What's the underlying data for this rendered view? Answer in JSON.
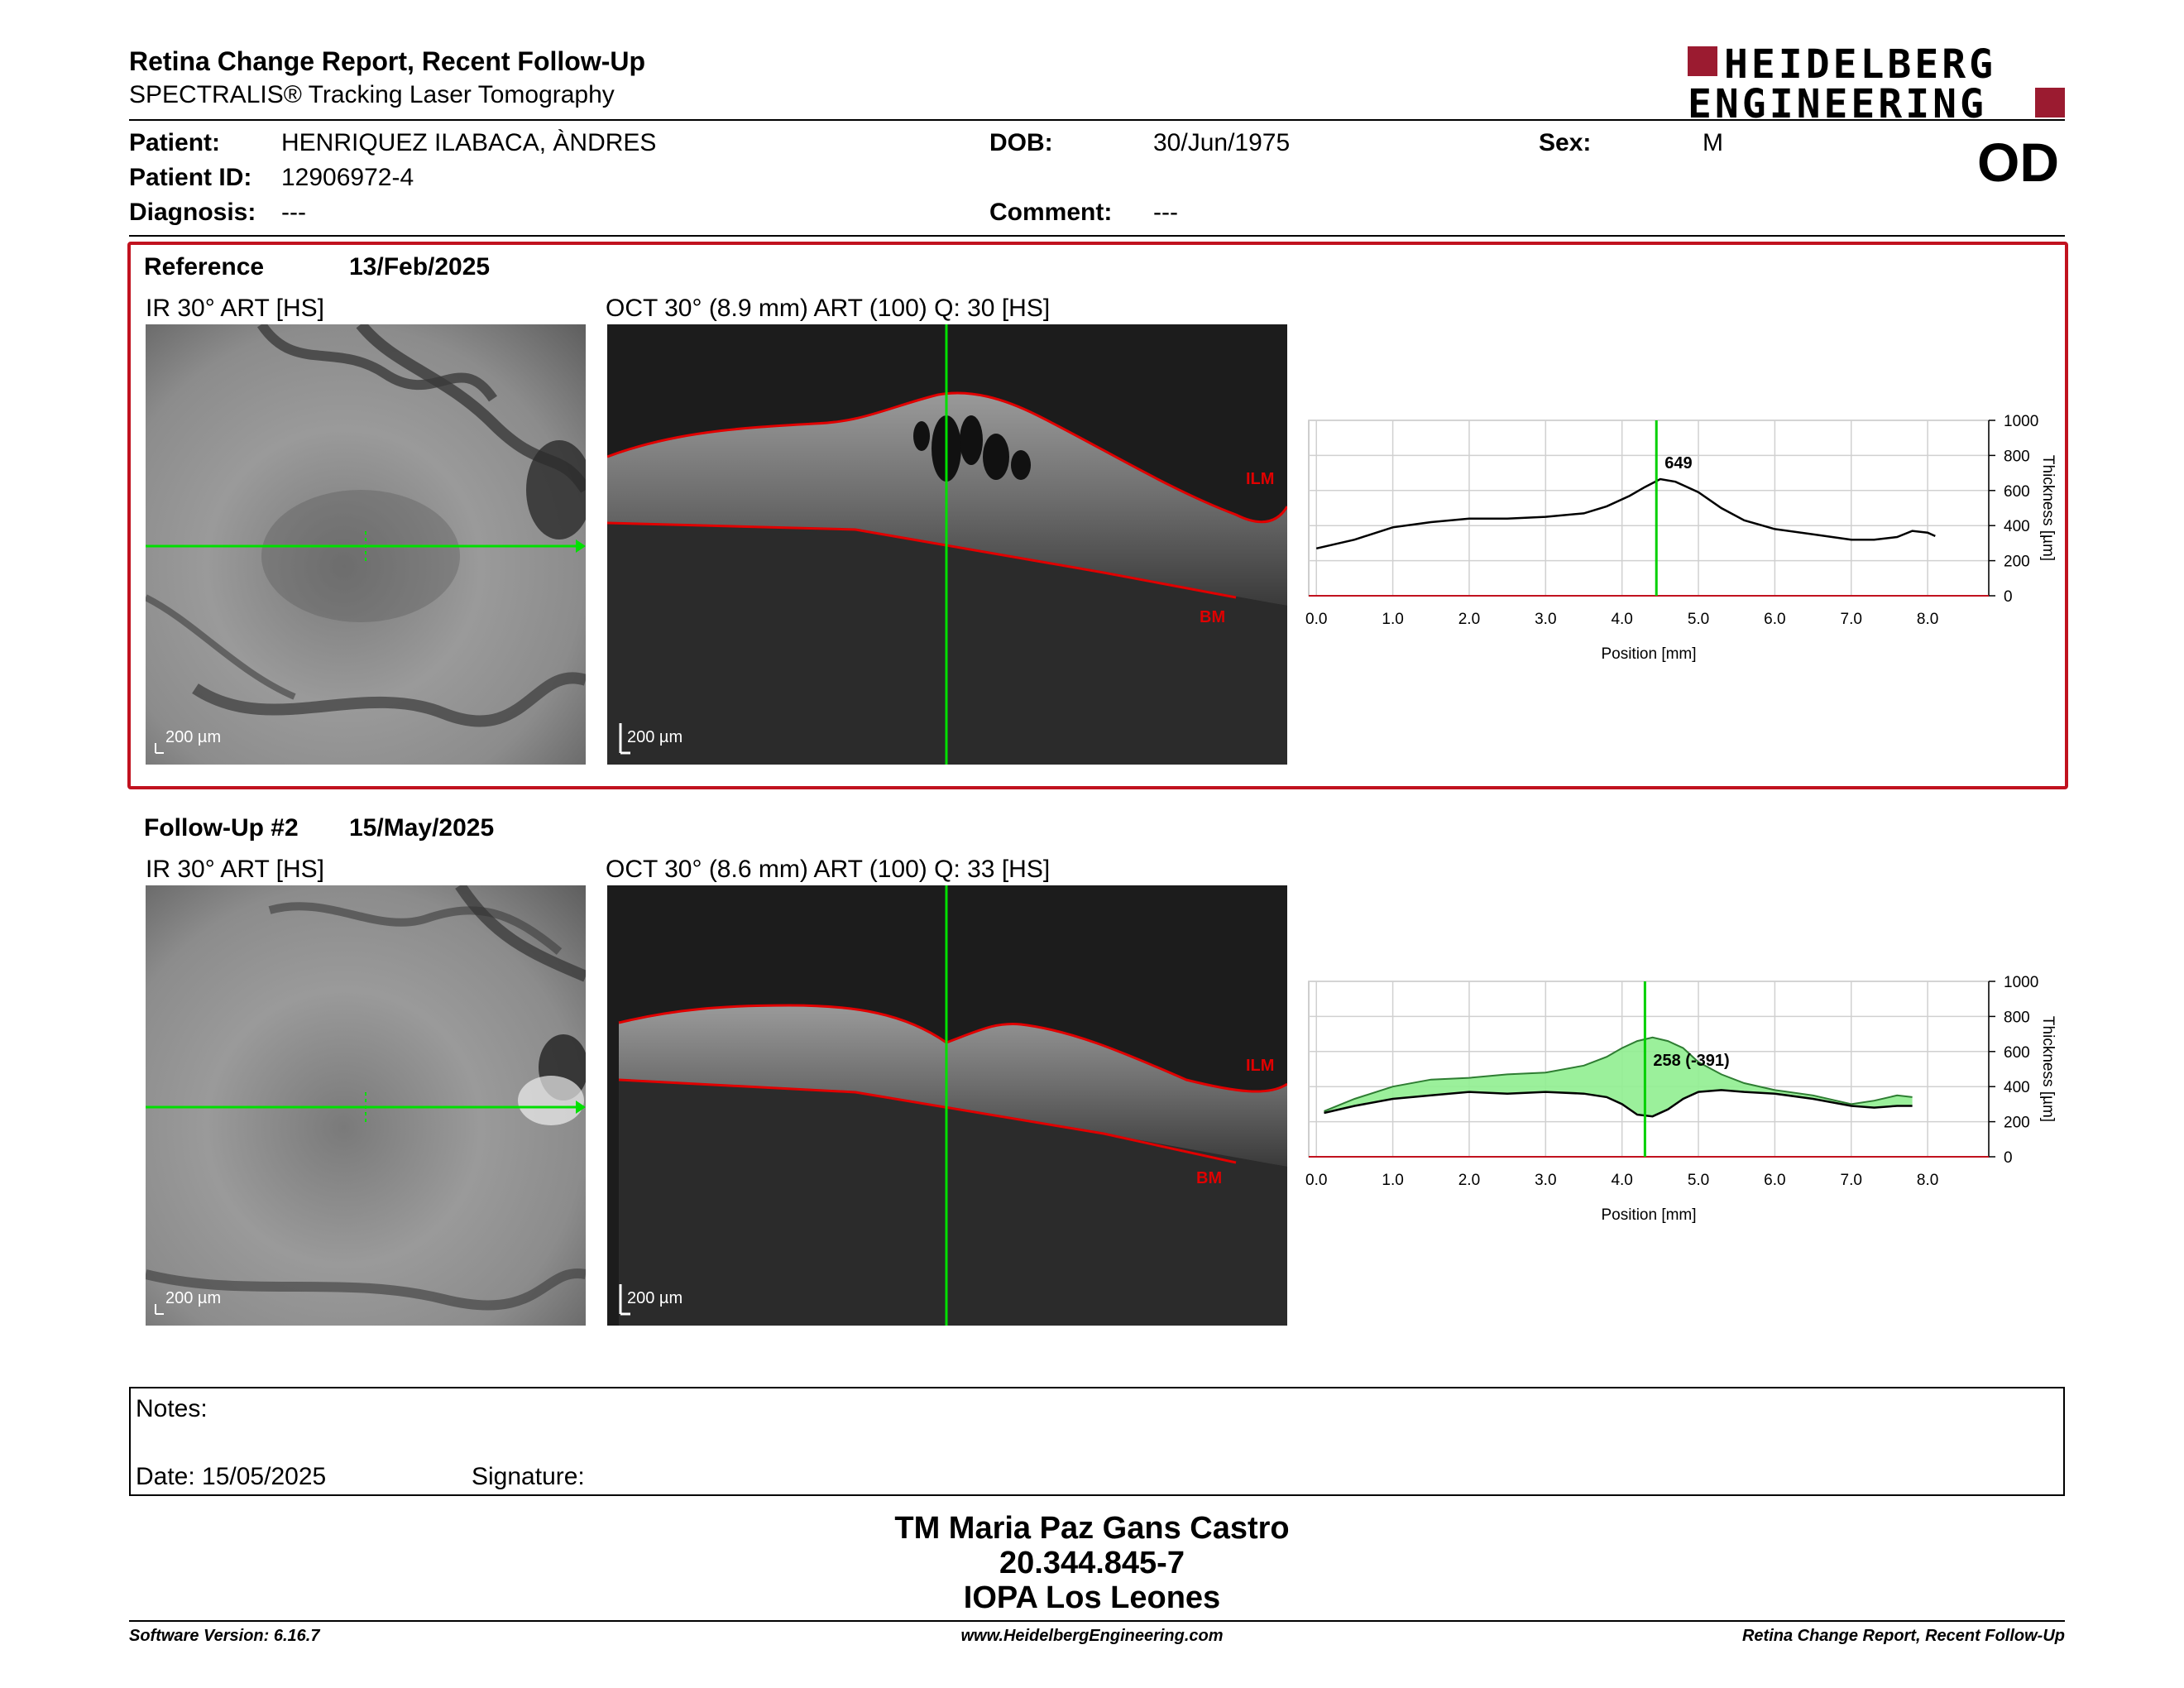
{
  "report": {
    "title": "Retina Change Report, Recent Follow-Up",
    "subtitle": "SPECTRALIS® Tracking Laser Tomography"
  },
  "logo": {
    "line1": "HEIDELBERG",
    "line2": "ENGINEERING",
    "color": "#9b1b30"
  },
  "patient": {
    "patient_label": "Patient:",
    "patient_value": "HENRIQUEZ ILABACA, ÀNDRES",
    "dob_label": "DOB:",
    "dob_value": "30/Jun/1975",
    "sex_label": "Sex:",
    "sex_value": "M",
    "id_label": "Patient ID:",
    "id_value": "12906972-4",
    "diagnosis_label": "Diagnosis:",
    "diagnosis_value": "---",
    "comment_label": "Comment:",
    "comment_value": "---",
    "eye": "OD"
  },
  "reference": {
    "label": "Reference",
    "date": "13/Feb/2025",
    "ir_caption": "IR 30° ART [HS]",
    "oct_caption": "OCT 30° (8.9 mm) ART (100) Q: 30 [HS]",
    "ir_scale": "200 µm",
    "oct_scale": "200 µm",
    "ilm": "ILM",
    "bm": "BM",
    "value_label": "649"
  },
  "followup": {
    "label": "Follow-Up #2",
    "date": "15/May/2025",
    "ir_caption": "IR 30° ART [HS]",
    "oct_caption": "OCT 30° (8.6 mm) ART (100) Q: 33 [HS]",
    "ir_scale": "200 µm",
    "oct_scale": "200 µm",
    "ilm": "ILM",
    "bm": "BM",
    "value_label": "258 (-391)"
  },
  "chart_data": [
    {
      "type": "line",
      "xlabel": "Position [mm]",
      "ylabel": "Thickness [µm]",
      "xlim": [
        -0.1,
        8.8
      ],
      "ylim": [
        0,
        1000
      ],
      "x_ticks": [
        "0.0",
        "1.0",
        "2.0",
        "3.0",
        "4.0",
        "5.0",
        "6.0",
        "7.0",
        "8.0"
      ],
      "y_ticks": [
        "0",
        "200",
        "400",
        "600",
        "800",
        "1000"
      ],
      "cursor_x": 4.45,
      "grid": true,
      "series": [
        {
          "x": [
            0.0,
            0.5,
            1.0,
            1.5,
            2.0,
            2.5,
            3.0,
            3.5,
            3.8,
            4.1,
            4.3,
            4.5,
            4.7,
            5.0,
            5.3,
            5.6,
            6.0,
            6.5,
            7.0,
            7.3,
            7.6,
            7.8,
            8.0,
            8.1
          ],
          "y": [
            270,
            320,
            390,
            420,
            440,
            440,
            450,
            470,
            510,
            570,
            620,
            665,
            650,
            590,
            500,
            430,
            380,
            350,
            320,
            320,
            335,
            370,
            360,
            340
          ]
        }
      ]
    },
    {
      "type": "area",
      "xlabel": "Position [mm]",
      "ylabel": "Thickness [µm]",
      "xlim": [
        -0.1,
        8.8
      ],
      "ylim": [
        0,
        1000
      ],
      "x_ticks": [
        "0.0",
        "1.0",
        "2.0",
        "3.0",
        "4.0",
        "5.0",
        "6.0",
        "7.0",
        "8.0"
      ],
      "y_ticks": [
        "0",
        "200",
        "400",
        "600",
        "800",
        "1000"
      ],
      "cursor_x": 4.3,
      "grid": true,
      "fill_color": "#90ee90",
      "series": [
        {
          "x": [
            0.1,
            0.5,
            1.0,
            1.5,
            2.0,
            2.5,
            3.0,
            3.5,
            3.8,
            4.0,
            4.2,
            4.4,
            4.6,
            4.8,
            5.0,
            5.3,
            5.6,
            6.0,
            6.5,
            7.0,
            7.3,
            7.6,
            7.8
          ],
          "y": [
            260,
            330,
            400,
            440,
            450,
            470,
            480,
            520,
            570,
            620,
            660,
            680,
            660,
            620,
            540,
            470,
            420,
            380,
            350,
            300,
            320,
            350,
            340
          ]
        },
        {
          "x": [
            0.1,
            0.5,
            1.0,
            1.5,
            2.0,
            2.5,
            3.0,
            3.5,
            3.8,
            4.0,
            4.2,
            4.4,
            4.6,
            4.8,
            5.0,
            5.3,
            5.6,
            6.0,
            6.5,
            7.0,
            7.3,
            7.6,
            7.8
          ],
          "y": [
            250,
            290,
            330,
            350,
            370,
            360,
            370,
            360,
            340,
            300,
            240,
            230,
            270,
            330,
            370,
            380,
            370,
            360,
            330,
            290,
            280,
            290,
            290
          ]
        }
      ]
    }
  ],
  "notes": {
    "label": "Notes:",
    "date": "Date: 15/05/2025",
    "signature": "Signature:"
  },
  "signer": {
    "name": "TM Maria Paz Gans Castro",
    "rut": "20.344.845-7",
    "org": "IOPA Los Leones"
  },
  "footer": {
    "software": "Software Version: 6.16.7",
    "website": "www.HeidelbergEngineering.com",
    "report_name": "Retina Change Report, Recent Follow-Up"
  }
}
